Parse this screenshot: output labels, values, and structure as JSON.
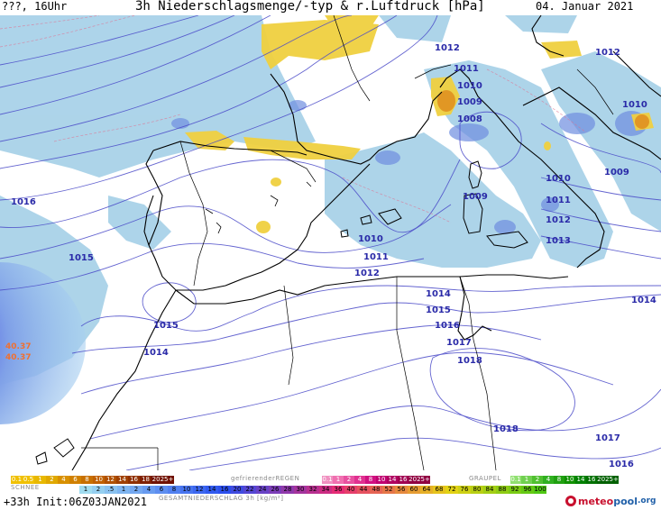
{
  "header": {
    "left": "???, 16Uhr",
    "title": "3h Niederschlagsmenge/-typ & r.Luftdruck [hPa]",
    "date": "04. Januar 2021"
  },
  "pressure_labels": [
    {
      "text": "1012"
    },
    {
      "text": "1012"
    },
    {
      "text": "1011"
    },
    {
      "text": "1010"
    },
    {
      "text": "1009"
    },
    {
      "text": "1008"
    },
    {
      "text": "1010"
    },
    {
      "text": "1009"
    },
    {
      "text": "1016"
    },
    {
      "text": "1009"
    },
    {
      "text": "1010"
    },
    {
      "text": "1011"
    },
    {
      "text": "1012"
    },
    {
      "text": "1013"
    },
    {
      "text": "1010"
    },
    {
      "text": "1011"
    },
    {
      "text": "1012"
    },
    {
      "text": "1015"
    },
    {
      "text": "1014"
    },
    {
      "text": "1015"
    },
    {
      "text": "1016"
    },
    {
      "text": "1014"
    },
    {
      "text": "1017"
    },
    {
      "text": "1018"
    },
    {
      "text": "1015"
    },
    {
      "text": "1014"
    },
    {
      "text": "1018"
    },
    {
      "text": "1017"
    },
    {
      "text": "1016"
    }
  ],
  "storm_labels": [
    "40.37",
    "40.37"
  ],
  "legend": {
    "rain_values": [
      "0.1",
      "0.5",
      "1",
      "2",
      "4",
      "6",
      "8",
      "10",
      "12",
      "14",
      "16",
      "18",
      "2025+"
    ],
    "freezing_label": "gefrierenderREGEN",
    "freezing_values": [
      "0.1",
      "1",
      "2",
      "4",
      "8",
      "10",
      "14",
      "16",
      "2025+"
    ],
    "graupel_label": "GRAUPEL",
    "graupel_values": [
      "0.1",
      "1",
      "2",
      "4",
      "8",
      "10",
      "14",
      "16",
      "2025+"
    ],
    "snow_label": "SCHNEE",
    "snow_values": [
      "1",
      "2",
      ".5",
      "1",
      "2",
      "4",
      "6",
      "8",
      "10",
      "12",
      "14",
      "16",
      "20",
      "22",
      "24",
      "26",
      "28",
      "30",
      "32",
      "34",
      "36",
      "40",
      "44",
      "48",
      "52",
      "56",
      "60",
      "64",
      "68",
      "72",
      "76",
      "80",
      "84",
      "88",
      "92",
      "96",
      "100"
    ],
    "total_label": "GESAMTNIEDERSCHLAG  3h  [kg/m²]",
    "colors": {
      "rain": [
        "#f0c000",
        "#f0c000",
        "#e8b800",
        "#e0a800",
        "#d89000",
        "#d08000",
        "#c87000",
        "#c06000",
        "#b05000",
        "#a04000",
        "#903000",
        "#802000",
        "#701000"
      ],
      "freezing": [
        "#f090c0",
        "#f070b0",
        "#e850a0",
        "#e03090",
        "#d01080",
        "#c00070",
        "#b00060",
        "#a00050",
        "#900040"
      ],
      "graupel": [
        "#90e070",
        "#70d050",
        "#50c030",
        "#30b020",
        "#20a010",
        "#109000",
        "#008000",
        "#007000",
        "#006000"
      ]
    }
  },
  "footer": {
    "forecast": "+33h",
    "init": "Init:06Z03JAN2021"
  },
  "logo": {
    "part_a": "meteo",
    "part_b": "pool",
    "part_c": ".org"
  }
}
